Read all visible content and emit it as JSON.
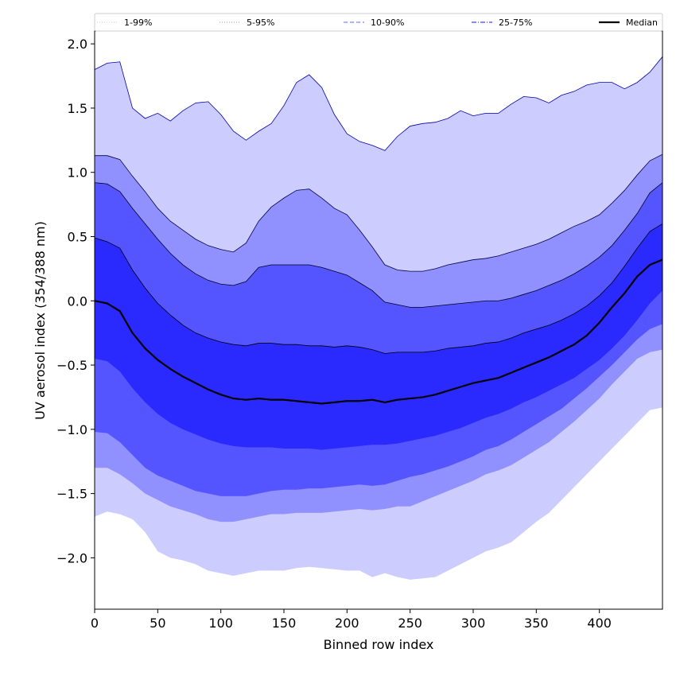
{
  "chart_data": {
    "type": "area",
    "title": "",
    "xlabel": "Binned row index",
    "ylabel": "UV aerosol index (354/388 nm)",
    "xlim": [
      0,
      450
    ],
    "ylim": [
      -2.4,
      2.1
    ],
    "xticks": [
      0,
      50,
      100,
      150,
      200,
      250,
      300,
      350,
      400
    ],
    "xtick_labels": [
      "0",
      "50",
      "100",
      "150",
      "200",
      "250",
      "300",
      "350",
      "400"
    ],
    "yticks": [
      2.0,
      1.5,
      1.0,
      0.5,
      0.0,
      -0.5,
      -1.0,
      -1.5,
      -2.0
    ],
    "ytick_labels": [
      "2.0",
      "1.5",
      "1.0",
      "0.5",
      "0.0",
      "−0.5",
      "−1.0",
      "−1.5",
      "−2.0"
    ],
    "legend_position": "top",
    "x": [
      0,
      10,
      20,
      30,
      40,
      50,
      60,
      70,
      80,
      90,
      100,
      110,
      120,
      130,
      140,
      150,
      160,
      170,
      180,
      190,
      200,
      210,
      220,
      230,
      240,
      250,
      260,
      270,
      280,
      290,
      300,
      310,
      320,
      330,
      340,
      350,
      360,
      370,
      380,
      390,
      400,
      410,
      420,
      430,
      440,
      450
    ],
    "bands": [
      {
        "name": "1-99%",
        "color": "#ccccff",
        "line_color": "#0000aa",
        "upper": [
          1.8,
          1.85,
          1.86,
          1.5,
          1.42,
          1.46,
          1.4,
          1.48,
          1.54,
          1.55,
          1.45,
          1.32,
          1.25,
          1.32,
          1.38,
          1.52,
          1.7,
          1.76,
          1.66,
          1.45,
          1.3,
          1.24,
          1.21,
          1.17,
          1.28,
          1.36,
          1.38,
          1.39,
          1.42,
          1.48,
          1.44,
          1.46,
          1.46,
          1.53,
          1.59,
          1.58,
          1.54,
          1.6,
          1.63,
          1.68,
          1.7,
          1.7,
          1.65,
          1.7,
          1.78,
          1.9
        ],
        "lower": [
          -1.68,
          -1.64,
          -1.66,
          -1.7,
          -1.8,
          -1.95,
          -2.0,
          -2.02,
          -2.05,
          -2.1,
          -2.12,
          -2.14,
          -2.12,
          -2.1,
          -2.1,
          -2.1,
          -2.08,
          -2.07,
          -2.08,
          -2.09,
          -2.1,
          -2.1,
          -2.15,
          -2.12,
          -2.15,
          -2.17,
          -2.16,
          -2.15,
          -2.1,
          -2.05,
          -2.0,
          -1.95,
          -1.92,
          -1.88,
          -1.8,
          -1.72,
          -1.65,
          -1.55,
          -1.45,
          -1.35,
          -1.25,
          -1.15,
          -1.05,
          -0.95,
          -0.85,
          -0.83
        ]
      },
      {
        "name": "5-95%",
        "color": "#9090ff",
        "line_color": "#000044",
        "upper": [
          1.13,
          1.13,
          1.1,
          0.97,
          0.85,
          0.72,
          0.62,
          0.55,
          0.48,
          0.43,
          0.4,
          0.38,
          0.45,
          0.62,
          0.73,
          0.8,
          0.86,
          0.87,
          0.8,
          0.72,
          0.67,
          0.55,
          0.42,
          0.28,
          0.24,
          0.23,
          0.23,
          0.25,
          0.28,
          0.3,
          0.32,
          0.33,
          0.35,
          0.38,
          0.41,
          0.44,
          0.48,
          0.53,
          0.58,
          0.62,
          0.67,
          0.76,
          0.86,
          0.98,
          1.09,
          1.14
        ],
        "lower": [
          -1.3,
          -1.3,
          -1.35,
          -1.42,
          -1.5,
          -1.55,
          -1.6,
          -1.63,
          -1.66,
          -1.7,
          -1.72,
          -1.72,
          -1.7,
          -1.68,
          -1.66,
          -1.66,
          -1.65,
          -1.65,
          -1.65,
          -1.64,
          -1.63,
          -1.62,
          -1.63,
          -1.62,
          -1.6,
          -1.6,
          -1.56,
          -1.52,
          -1.48,
          -1.44,
          -1.4,
          -1.35,
          -1.32,
          -1.28,
          -1.22,
          -1.16,
          -1.1,
          -1.02,
          -0.94,
          -0.85,
          -0.76,
          -0.65,
          -0.55,
          -0.45,
          -0.4,
          -0.38
        ]
      },
      {
        "name": "10-90%",
        "color": "#5555ff",
        "line_color": "#000022",
        "upper": [
          0.92,
          0.91,
          0.85,
          0.72,
          0.6,
          0.48,
          0.37,
          0.28,
          0.21,
          0.16,
          0.13,
          0.12,
          0.15,
          0.26,
          0.28,
          0.28,
          0.28,
          0.28,
          0.26,
          0.23,
          0.2,
          0.14,
          0.08,
          -0.01,
          -0.03,
          -0.05,
          -0.05,
          -0.04,
          -0.03,
          -0.02,
          -0.01,
          0.0,
          0.0,
          0.02,
          0.05,
          0.08,
          0.12,
          0.16,
          0.21,
          0.27,
          0.34,
          0.43,
          0.55,
          0.68,
          0.84,
          0.92
        ],
        "lower": [
          -1.02,
          -1.03,
          -1.1,
          -1.2,
          -1.3,
          -1.36,
          -1.4,
          -1.44,
          -1.48,
          -1.5,
          -1.52,
          -1.52,
          -1.52,
          -1.5,
          -1.48,
          -1.47,
          -1.47,
          -1.46,
          -1.46,
          -1.45,
          -1.44,
          -1.43,
          -1.44,
          -1.43,
          -1.4,
          -1.37,
          -1.35,
          -1.32,
          -1.29,
          -1.25,
          -1.21,
          -1.16,
          -1.13,
          -1.08,
          -1.02,
          -0.96,
          -0.9,
          -0.84,
          -0.76,
          -0.68,
          -0.59,
          -0.5,
          -0.4,
          -0.3,
          -0.22,
          -0.18
        ]
      },
      {
        "name": "25-75%",
        "color": "#2a2aff",
        "line_color": "#000011",
        "upper": [
          0.49,
          0.46,
          0.41,
          0.24,
          0.1,
          -0.02,
          -0.11,
          -0.19,
          -0.25,
          -0.29,
          -0.32,
          -0.34,
          -0.35,
          -0.33,
          -0.33,
          -0.34,
          -0.34,
          -0.35,
          -0.35,
          -0.36,
          -0.35,
          -0.36,
          -0.38,
          -0.41,
          -0.4,
          -0.4,
          -0.4,
          -0.39,
          -0.37,
          -0.36,
          -0.35,
          -0.33,
          -0.32,
          -0.29,
          -0.25,
          -0.22,
          -0.19,
          -0.15,
          -0.1,
          -0.04,
          0.04,
          0.14,
          0.27,
          0.41,
          0.54,
          0.6
        ],
        "lower": [
          -0.45,
          -0.47,
          -0.55,
          -0.68,
          -0.79,
          -0.88,
          -0.95,
          -1.0,
          -1.04,
          -1.08,
          -1.11,
          -1.13,
          -1.14,
          -1.14,
          -1.14,
          -1.15,
          -1.15,
          -1.15,
          -1.16,
          -1.15,
          -1.14,
          -1.13,
          -1.12,
          -1.12,
          -1.11,
          -1.09,
          -1.07,
          -1.05,
          -1.02,
          -0.99,
          -0.95,
          -0.91,
          -0.88,
          -0.84,
          -0.79,
          -0.75,
          -0.7,
          -0.65,
          -0.6,
          -0.53,
          -0.46,
          -0.37,
          -0.27,
          -0.15,
          -0.02,
          0.08
        ]
      }
    ],
    "median": {
      "name": "Median",
      "color": "#000000",
      "values": [
        0.0,
        -0.02,
        -0.08,
        -0.25,
        -0.37,
        -0.46,
        -0.53,
        -0.59,
        -0.64,
        -0.69,
        -0.73,
        -0.76,
        -0.77,
        -0.76,
        -0.77,
        -0.77,
        -0.78,
        -0.79,
        -0.8,
        -0.79,
        -0.78,
        -0.78,
        -0.77,
        -0.79,
        -0.77,
        -0.76,
        -0.75,
        -0.73,
        -0.7,
        -0.67,
        -0.64,
        -0.62,
        -0.6,
        -0.56,
        -0.52,
        -0.48,
        -0.44,
        -0.39,
        -0.34,
        -0.27,
        -0.17,
        -0.05,
        0.06,
        0.19,
        0.28,
        0.32
      ]
    },
    "legend": [
      {
        "label": "1-99%",
        "color": "#d0d0ff",
        "style": "dotted"
      },
      {
        "label": "5-95%",
        "color": "#a8a8ff",
        "style": "dotted"
      },
      {
        "label": "10-90%",
        "color": "#8080ff",
        "style": "dashed"
      },
      {
        "label": "25-75%",
        "color": "#4040ff",
        "style": "dashdot"
      },
      {
        "label": "Median",
        "color": "#000000",
        "style": "solid"
      }
    ]
  }
}
